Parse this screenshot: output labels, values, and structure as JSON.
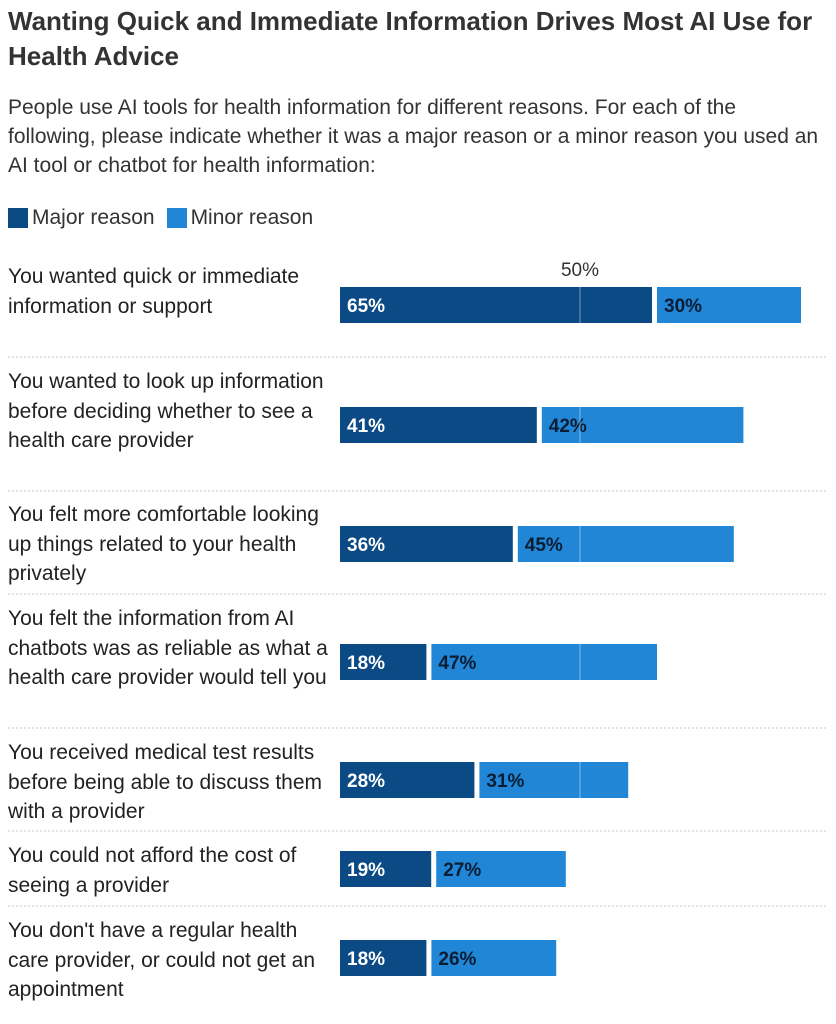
{
  "chart_data": {
    "type": "bar",
    "orientation": "horizontal",
    "stacked": true,
    "title": "Wanting Quick and Immediate Information Drives Most AI Use for Health Advice",
    "subtitle": "People use AI tools for health information for different reasons. For each of the following, please indicate whether it was a major reason or a minor reason you used an AI tool or chatbot for health information:",
    "legend_position": "top-left",
    "reference_line": {
      "value": 50,
      "label": "50%"
    },
    "xlim": [
      0,
      100
    ],
    "categories": [
      "You wanted quick or immediate information or support",
      "You wanted to look up information before deciding whether to see a health care provider",
      "You felt more comfortable looking up things related to your health privately",
      "You felt the information from AI chatbots was as reliable as what a health care provider would tell you",
      "You received medical test results before being able to discuss them with a provider",
      "You could not afford the cost of seeing a provider",
      "You don't have a regular health care provider, or could not get an appointment"
    ],
    "series": [
      {
        "name": "Major reason",
        "color": "#0b4a85",
        "text_color": "#ffffff",
        "values": [
          65,
          41,
          36,
          18,
          28,
          19,
          18
        ],
        "labels": [
          "65%",
          "41%",
          "36%",
          "18%",
          "28%",
          "19%",
          "18%"
        ]
      },
      {
        "name": "Minor reason",
        "color": "#2186d6",
        "text_color": "#0a1d33",
        "values": [
          30,
          42,
          45,
          47,
          31,
          27,
          26
        ],
        "labels": [
          "30%",
          "42%",
          "45%",
          "47%",
          "31%",
          "27%",
          "26%"
        ]
      }
    ]
  }
}
